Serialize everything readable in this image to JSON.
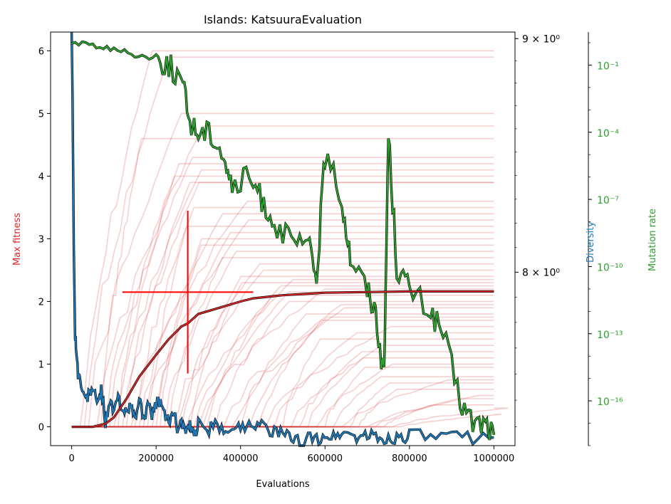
{
  "chart_data": {
    "type": "line",
    "title": "Islands: KatsuuraEvaluation",
    "xlabel": "Evaluations",
    "x_ticks": [
      "0",
      "200000",
      "400000",
      "600000",
      "800000",
      "1000000"
    ],
    "xlim": [
      -50000,
      1050000
    ],
    "grid": false,
    "axes": {
      "fitness": {
        "label": "Max fitness",
        "color": "#d62728",
        "position": "left",
        "scale": "linear",
        "ylim": [
          -0.3,
          6.3
        ],
        "ticks": [
          "0",
          "1",
          "2",
          "3",
          "4",
          "5",
          "6"
        ]
      },
      "diversity": {
        "label": "Diversity",
        "color": "#1f77b4",
        "position": "right",
        "scale": "log",
        "ylim": [
          7.33,
          9.03
        ],
        "ticks": [
          "8 × 10⁰",
          "9 × 10⁰"
        ]
      },
      "mutation": {
        "label": "Mutation rate",
        "color": "#2ca02c",
        "position": "right-offset",
        "scale": "log",
        "ylim": [
          1e-18,
          3.0
        ],
        "ticks": [
          "10⁻¹",
          "10⁻⁴",
          "10⁻⁷",
          "10⁻¹⁰",
          "10⁻¹³",
          "10⁻¹⁶"
        ]
      }
    },
    "series": [
      {
        "axis": "fitness",
        "style": "individual island runs (faint)",
        "color": "#d62728",
        "plateau_values": [
          6.0,
          5.9,
          5.0,
          4.8,
          4.6,
          4.3,
          4.2,
          4.1,
          4.0,
          3.9,
          3.9,
          3.6,
          3.5,
          3.4,
          3.3,
          3.2,
          3.1,
          3.0,
          2.9,
          2.8,
          2.7,
          2.6,
          2.5,
          2.4,
          2.35,
          2.3,
          2.25,
          2.2,
          2.15,
          2.1,
          2.0,
          1.95,
          1.9,
          1.8,
          1.75,
          1.7,
          1.6,
          1.5,
          1.4,
          1.3,
          1.2,
          1.1,
          1.0,
          0.95,
          0.8,
          0.75,
          0.7,
          0.6,
          0.5,
          0.45,
          0.35,
          0.3,
          0.2
        ],
        "rise_start": [
          20000,
          30000,
          40000,
          60000,
          70000,
          80000,
          90000,
          100000,
          110000,
          120000,
          130000,
          140000,
          150000,
          160000,
          170000,
          180000,
          190000,
          200000,
          210000,
          220000,
          230000,
          240000,
          250000,
          260000,
          270000,
          280000,
          290000,
          300000,
          310000,
          320000,
          340000,
          360000,
          380000,
          400000,
          420000,
          440000,
          460000,
          480000,
          500000,
          520000,
          540000,
          560000,
          580000,
          600000,
          620000,
          640000,
          660000,
          680000,
          700000,
          720000,
          740000,
          760000,
          780000
        ]
      },
      {
        "axis": "fitness",
        "style": "mean",
        "color": "#d62728",
        "x": [
          0,
          50000,
          80000,
          100000,
          130000,
          160000,
          200000,
          230000,
          260000,
          275000,
          300000,
          350000,
          400000,
          430000,
          500000,
          550000,
          600000,
          700000,
          800000,
          1000000
        ],
        "values": [
          0.0,
          0.0,
          0.05,
          0.15,
          0.45,
          0.8,
          1.15,
          1.4,
          1.6,
          1.65,
          1.8,
          1.9,
          2.0,
          2.05,
          2.1,
          2.12,
          2.14,
          2.15,
          2.16,
          2.16
        ]
      },
      {
        "axis": "fitness",
        "style": "error cross",
        "color": "#ff0000",
        "center": [
          275000,
          2.15
        ],
        "x_range": [
          120000,
          430000
        ],
        "y_range": [
          0.85,
          3.45
        ]
      },
      {
        "axis": "diversity",
        "color": "#1f77b4",
        "x": [
          0,
          2000,
          5000,
          8000,
          10000,
          15000,
          20000,
          30000,
          40000,
          50000,
          60000,
          70000,
          80000,
          90000,
          100000,
          110000,
          120000,
          130000,
          140000,
          150000,
          160000,
          170000,
          180000,
          190000,
          200000,
          210000,
          220000,
          230000,
          240000,
          250000,
          260000,
          270000,
          280000,
          290000,
          300000,
          320000,
          340000,
          360000,
          380000,
          400000,
          420000,
          440000,
          460000,
          480000,
          500000,
          520000,
          540000,
          560000,
          580000,
          600000,
          620000,
          640000,
          660000,
          680000,
          700000,
          720000,
          740000,
          760000,
          780000,
          800000,
          850000,
          900000,
          950000,
          1000000
        ],
        "values": [
          9.03,
          8.75,
          8.1,
          7.75,
          7.72,
          7.6,
          7.58,
          7.5,
          7.52,
          7.55,
          7.48,
          7.54,
          7.42,
          7.5,
          7.45,
          7.52,
          7.44,
          7.48,
          7.47,
          7.43,
          7.5,
          7.44,
          7.47,
          7.45,
          7.48,
          7.5,
          7.44,
          7.42,
          7.46,
          7.4,
          7.42,
          7.38,
          7.4,
          7.36,
          7.41,
          7.39,
          7.4,
          7.38,
          7.41,
          7.39,
          7.42,
          7.41,
          7.4,
          7.38,
          7.37,
          7.36,
          7.34,
          7.36,
          7.35,
          7.37,
          7.36,
          7.38,
          7.37,
          7.36,
          7.37,
          7.36,
          7.35,
          7.36,
          7.36,
          7.37,
          7.36,
          7.36,
          7.36,
          7.36
        ]
      },
      {
        "axis": "mutation",
        "color": "#2ca02c",
        "x": [
          0,
          50000,
          100000,
          150000,
          200000,
          230000,
          260000,
          280000,
          300000,
          330000,
          360000,
          380000,
          420000,
          450000,
          480000,
          520000,
          560000,
          580000,
          600000,
          640000,
          660000,
          700000,
          720000,
          740000,
          750000,
          770000,
          800000,
          850000,
          880000,
          920000,
          950000,
          980000,
          1000000
        ],
        "values": [
          1.0,
          0.8,
          0.5,
          0.3,
          0.2,
          0.1,
          0.02,
          0.0003,
          0.0001,
          0.0001,
          1e-05,
          3e-07,
          1e-06,
          1e-07,
          1e-08,
          1e-09,
          1e-09,
          3e-11,
          1e-05,
          1e-07,
          3e-10,
          1e-11,
          1e-12,
          1e-15,
          0.0001,
          1e-10,
          1e-11,
          1e-12,
          1e-13,
          1e-16,
          1e-17,
          1e-17,
          3e-18
        ]
      }
    ]
  }
}
